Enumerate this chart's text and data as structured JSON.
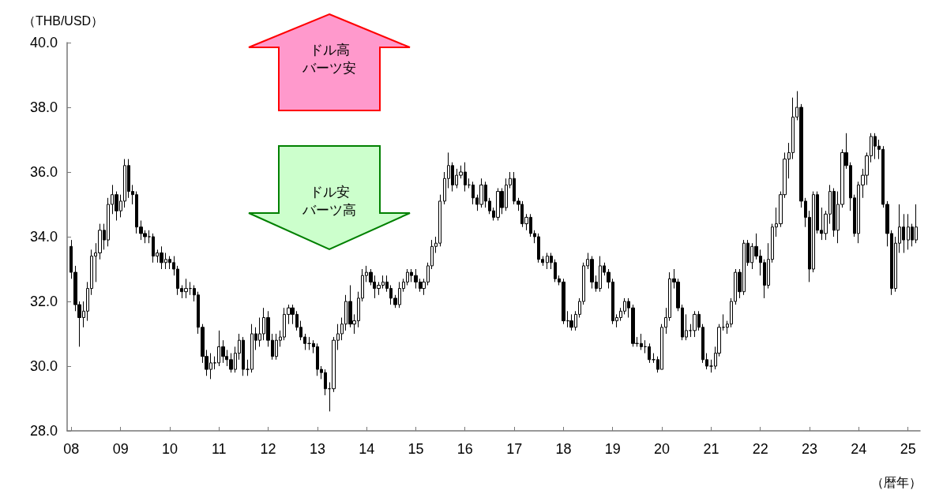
{
  "chart_data": {
    "type": "candlestick",
    "ylabel": "（THB/USD）",
    "xlabel": "（暦年）",
    "annotations": [
      "ドル高",
      "バーツ安",
      "ドル安",
      "バーツ高"
    ],
    "ylim": [
      28,
      40
    ],
    "yticks": [
      {
        "value": 28,
        "label": "28.0"
      },
      {
        "value": 30,
        "label": "30.0"
      },
      {
        "value": 32,
        "label": "32.0"
      },
      {
        "value": 34,
        "label": "34.0"
      },
      {
        "value": 36,
        "label": "36.0"
      },
      {
        "value": 38,
        "label": "38.0"
      },
      {
        "value": 40,
        "label": "40.0"
      }
    ],
    "xlim": [
      "2007-12-01",
      "2025-04"
    ],
    "xticks": [
      {
        "value": "2008-01",
        "label": "08"
      },
      {
        "value": "2009-01",
        "label": "09"
      },
      {
        "value": "2010-01",
        "label": "10"
      },
      {
        "value": "2011-01",
        "label": "11"
      },
      {
        "value": "2012-01",
        "label": "12"
      },
      {
        "value": "2013-01",
        "label": "13"
      },
      {
        "value": "2014-01",
        "label": "14"
      },
      {
        "value": "2015-01",
        "label": "15"
      },
      {
        "value": "2016-01",
        "label": "16"
      },
      {
        "value": "2017-01",
        "label": "17"
      },
      {
        "value": "2018-01",
        "label": "18"
      },
      {
        "value": "2019-01",
        "label": "19"
      },
      {
        "value": "2020-01",
        "label": "20"
      },
      {
        "value": "2021-01",
        "label": "21"
      },
      {
        "value": "2022-01",
        "label": "22"
      },
      {
        "value": "2023-01",
        "label": "23"
      },
      {
        "value": "2024-01",
        "label": "24"
      },
      {
        "value": "2025-01",
        "label": "25"
      }
    ],
    "grid": false,
    "x": [
      "2008-01",
      "2008-02",
      "2008-03",
      "2008-04",
      "2008-05",
      "2008-06",
      "2008-07",
      "2008-08",
      "2008-09",
      "2008-10",
      "2008-11",
      "2008-12",
      "2009-01",
      "2009-02",
      "2009-03",
      "2009-04",
      "2009-05",
      "2009-06",
      "2009-07",
      "2009-08",
      "2009-09",
      "2009-10",
      "2009-11",
      "2009-12",
      "2010-01",
      "2010-02",
      "2010-03",
      "2010-04",
      "2010-05",
      "2010-06",
      "2010-07",
      "2010-08",
      "2010-09",
      "2010-10",
      "2010-11",
      "2010-12",
      "2011-01",
      "2011-02",
      "2011-03",
      "2011-04",
      "2011-05",
      "2011-06",
      "2011-07",
      "2011-08",
      "2011-09",
      "2011-10",
      "2011-11",
      "2011-12",
      "2012-01",
      "2012-02",
      "2012-03",
      "2012-04",
      "2012-05",
      "2012-06",
      "2012-07",
      "2012-08",
      "2012-09",
      "2012-10",
      "2012-11",
      "2012-12",
      "2013-01",
      "2013-02",
      "2013-03",
      "2013-04",
      "2013-05",
      "2013-06",
      "2013-07",
      "2013-08",
      "2013-09",
      "2013-10",
      "2013-11",
      "2013-12",
      "2014-01",
      "2014-02",
      "2014-03",
      "2014-04",
      "2014-05",
      "2014-06",
      "2014-07",
      "2014-08",
      "2014-09",
      "2014-10",
      "2014-11",
      "2014-12",
      "2015-01",
      "2015-02",
      "2015-03",
      "2015-04",
      "2015-05",
      "2015-06",
      "2015-07",
      "2015-08",
      "2015-09",
      "2015-10",
      "2015-11",
      "2015-12",
      "2016-01",
      "2016-02",
      "2016-03",
      "2016-04",
      "2016-05",
      "2016-06",
      "2016-07",
      "2016-08",
      "2016-09",
      "2016-10",
      "2016-11",
      "2016-12",
      "2017-01",
      "2017-02",
      "2017-03",
      "2017-04",
      "2017-05",
      "2017-06",
      "2017-07",
      "2017-08",
      "2017-09",
      "2017-10",
      "2017-11",
      "2017-12",
      "2018-01",
      "2018-02",
      "2018-03",
      "2018-04",
      "2018-05",
      "2018-06",
      "2018-07",
      "2018-08",
      "2018-09",
      "2018-10",
      "2018-11",
      "2018-12",
      "2019-01",
      "2019-02",
      "2019-03",
      "2019-04",
      "2019-05",
      "2019-06",
      "2019-07",
      "2019-08",
      "2019-09",
      "2019-10",
      "2019-11",
      "2019-12",
      "2020-01",
      "2020-02",
      "2020-03",
      "2020-04",
      "2020-05",
      "2020-06",
      "2020-07",
      "2020-08",
      "2020-09",
      "2020-10",
      "2020-11",
      "2020-12",
      "2021-01",
      "2021-02",
      "2021-03",
      "2021-04",
      "2021-05",
      "2021-06",
      "2021-07",
      "2021-08",
      "2021-09",
      "2021-10",
      "2021-11",
      "2021-12",
      "2022-01",
      "2022-02",
      "2022-03",
      "2022-04",
      "2022-05",
      "2022-06",
      "2022-07",
      "2022-08",
      "2022-09",
      "2022-10",
      "2022-11",
      "2022-12",
      "2023-01",
      "2023-02",
      "2023-03",
      "2023-04",
      "2023-05",
      "2023-06",
      "2023-07",
      "2023-08",
      "2023-09",
      "2023-10",
      "2023-11",
      "2023-12",
      "2024-01",
      "2024-02",
      "2024-03",
      "2024-04",
      "2024-05",
      "2024-06",
      "2024-07",
      "2024-08",
      "2024-09",
      "2024-10",
      "2024-11",
      "2024-12",
      "2025-01",
      "2025-02",
      "2025-03"
    ],
    "ohlc": [
      [
        33.7,
        33.9,
        32.7,
        32.9
      ],
      [
        32.9,
        33.1,
        31.7,
        31.9
      ],
      [
        31.9,
        32.0,
        30.6,
        31.5
      ],
      [
        31.5,
        32.0,
        31.2,
        31.7
      ],
      [
        31.7,
        32.6,
        31.4,
        32.4
      ],
      [
        32.4,
        33.6,
        32.2,
        33.4
      ],
      [
        33.4,
        33.8,
        32.6,
        33.5
      ],
      [
        33.5,
        34.4,
        33.3,
        34.2
      ],
      [
        34.2,
        34.4,
        33.6,
        33.9
      ],
      [
        33.9,
        35.2,
        33.7,
        35.0
      ],
      [
        35.0,
        35.6,
        34.7,
        35.3
      ],
      [
        35.3,
        35.4,
        34.5,
        34.8
      ],
      [
        34.8,
        35.3,
        34.6,
        35.1
      ],
      [
        35.1,
        36.4,
        34.9,
        36.2
      ],
      [
        36.2,
        36.4,
        35.2,
        35.4
      ],
      [
        35.4,
        35.6,
        35.0,
        35.3
      ],
      [
        35.3,
        35.4,
        34.1,
        34.3
      ],
      [
        34.3,
        34.5,
        33.9,
        34.1
      ],
      [
        34.1,
        34.2,
        33.8,
        34.0
      ],
      [
        34.0,
        34.2,
        33.8,
        34.0
      ],
      [
        34.0,
        34.1,
        33.2,
        33.4
      ],
      [
        33.4,
        33.6,
        33.2,
        33.5
      ],
      [
        33.5,
        33.7,
        33.0,
        33.2
      ],
      [
        33.2,
        33.5,
        33.0,
        33.3
      ],
      [
        33.3,
        33.4,
        33.0,
        33.2
      ],
      [
        33.2,
        33.4,
        32.8,
        33.0
      ],
      [
        33.0,
        33.1,
        32.2,
        32.4
      ],
      [
        32.4,
        32.5,
        32.1,
        32.3
      ],
      [
        32.3,
        32.7,
        32.1,
        32.4
      ],
      [
        32.4,
        32.6,
        32.2,
        32.4
      ],
      [
        32.4,
        32.5,
        32.0,
        32.2
      ],
      [
        32.2,
        32.3,
        31.0,
        31.2
      ],
      [
        31.2,
        31.3,
        30.1,
        30.3
      ],
      [
        30.3,
        30.5,
        29.7,
        29.9
      ],
      [
        29.9,
        30.4,
        29.6,
        30.1
      ],
      [
        30.1,
        30.3,
        29.9,
        30.1
      ],
      [
        30.1,
        31.1,
        30.0,
        30.6
      ],
      [
        30.6,
        30.8,
        30.1,
        30.3
      ],
      [
        30.3,
        30.5,
        30.0,
        30.2
      ],
      [
        30.2,
        30.4,
        29.8,
        29.9
      ],
      [
        29.9,
        30.6,
        29.8,
        30.4
      ],
      [
        30.4,
        31.0,
        30.2,
        30.8
      ],
      [
        30.8,
        30.9,
        29.7,
        29.9
      ],
      [
        29.9,
        30.2,
        29.7,
        29.9
      ],
      [
        29.9,
        31.3,
        29.8,
        31.0
      ],
      [
        31.0,
        31.2,
        30.5,
        30.8
      ],
      [
        30.8,
        31.5,
        30.6,
        31.0
      ],
      [
        31.0,
        31.8,
        30.8,
        31.5
      ],
      [
        31.5,
        31.7,
        30.6,
        30.8
      ],
      [
        30.8,
        31.0,
        30.2,
        30.3
      ],
      [
        30.3,
        31.0,
        30.2,
        30.8
      ],
      [
        30.8,
        31.1,
        30.6,
        30.9
      ],
      [
        30.9,
        31.8,
        30.8,
        31.6
      ],
      [
        31.6,
        31.9,
        31.3,
        31.8
      ],
      [
        31.8,
        31.9,
        31.3,
        31.6
      ],
      [
        31.6,
        31.7,
        31.1,
        31.2
      ],
      [
        31.2,
        31.4,
        30.8,
        30.9
      ],
      [
        30.9,
        31.0,
        30.5,
        30.7
      ],
      [
        30.7,
        30.9,
        30.5,
        30.7
      ],
      [
        30.7,
        30.8,
        30.4,
        30.6
      ],
      [
        30.6,
        30.7,
        29.7,
        29.9
      ],
      [
        29.9,
        30.0,
        29.6,
        29.8
      ],
      [
        29.8,
        29.9,
        29.1,
        29.3
      ],
      [
        29.3,
        29.5,
        28.6,
        29.3
      ],
      [
        29.3,
        30.9,
        29.2,
        30.8
      ],
      [
        30.8,
        31.3,
        30.5,
        31.0
      ],
      [
        31.0,
        31.5,
        30.8,
        31.3
      ],
      [
        31.3,
        32.2,
        31.1,
        32.0
      ],
      [
        32.0,
        32.5,
        31.2,
        31.3
      ],
      [
        31.3,
        31.6,
        31.0,
        31.4
      ],
      [
        31.4,
        32.3,
        31.2,
        32.1
      ],
      [
        32.1,
        33.0,
        32.0,
        32.8
      ],
      [
        32.8,
        33.1,
        32.6,
        32.9
      ],
      [
        32.9,
        33.0,
        32.5,
        32.6
      ],
      [
        32.6,
        32.8,
        32.1,
        32.4
      ],
      [
        32.4,
        32.6,
        32.2,
        32.5
      ],
      [
        32.5,
        32.8,
        32.4,
        32.6
      ],
      [
        32.6,
        32.8,
        32.3,
        32.4
      ],
      [
        32.4,
        32.5,
        31.9,
        32.1
      ],
      [
        32.1,
        32.2,
        31.8,
        31.9
      ],
      [
        31.9,
        32.6,
        31.8,
        32.4
      ],
      [
        32.4,
        32.7,
        32.3,
        32.6
      ],
      [
        32.6,
        33.0,
        32.5,
        32.9
      ],
      [
        32.9,
        33.0,
        32.6,
        32.8
      ],
      [
        32.8,
        33.0,
        32.4,
        32.6
      ],
      [
        32.6,
        32.7,
        32.3,
        32.4
      ],
      [
        32.4,
        32.7,
        32.2,
        32.6
      ],
      [
        32.6,
        33.2,
        32.5,
        33.1
      ],
      [
        33.1,
        33.9,
        33.0,
        33.7
      ],
      [
        33.7,
        34.0,
        33.5,
        33.8
      ],
      [
        33.8,
        35.3,
        33.7,
        35.1
      ],
      [
        35.1,
        36.0,
        35.0,
        35.8
      ],
      [
        35.8,
        36.6,
        35.5,
        36.2
      ],
      [
        36.2,
        36.3,
        35.4,
        35.6
      ],
      [
        35.6,
        36.1,
        35.5,
        35.9
      ],
      [
        35.9,
        36.2,
        35.8,
        36.0
      ],
      [
        36.0,
        36.3,
        35.4,
        35.6
      ],
      [
        35.6,
        35.8,
        35.5,
        35.6
      ],
      [
        35.6,
        35.7,
        35.0,
        35.2
      ],
      [
        35.2,
        35.3,
        34.8,
        35.0
      ],
      [
        35.0,
        35.8,
        34.9,
        35.6
      ],
      [
        35.6,
        35.7,
        34.9,
        35.1
      ],
      [
        35.1,
        35.2,
        34.7,
        34.8
      ],
      [
        34.8,
        34.9,
        34.5,
        34.6
      ],
      [
        34.6,
        35.5,
        34.5,
        35.4
      ],
      [
        35.4,
        35.5,
        34.7,
        34.9
      ],
      [
        34.9,
        35.8,
        34.8,
        35.6
      ],
      [
        35.6,
        36.0,
        35.5,
        35.8
      ],
      [
        35.8,
        36.0,
        35.0,
        35.1
      ],
      [
        35.1,
        35.2,
        34.8,
        35.0
      ],
      [
        35.0,
        35.1,
        34.3,
        34.4
      ],
      [
        34.4,
        34.7,
        34.2,
        34.6
      ],
      [
        34.6,
        34.7,
        34.0,
        34.1
      ],
      [
        34.1,
        34.2,
        33.8,
        34.0
      ],
      [
        34.0,
        34.1,
        33.2,
        33.3
      ],
      [
        33.3,
        33.4,
        33.1,
        33.2
      ],
      [
        33.2,
        33.5,
        33.0,
        33.4
      ],
      [
        33.4,
        33.5,
        33.0,
        33.2
      ],
      [
        33.2,
        33.3,
        32.6,
        32.7
      ],
      [
        32.7,
        32.8,
        32.5,
        32.6
      ],
      [
        32.6,
        32.7,
        31.3,
        31.4
      ],
      [
        31.4,
        31.7,
        31.2,
        31.4
      ],
      [
        31.4,
        31.6,
        31.1,
        31.2
      ],
      [
        31.2,
        31.7,
        31.1,
        31.6
      ],
      [
        31.6,
        32.1,
        31.5,
        32.0
      ],
      [
        32.0,
        33.2,
        31.9,
        33.1
      ],
      [
        33.1,
        33.5,
        33.0,
        33.3
      ],
      [
        33.3,
        33.4,
        32.4,
        32.6
      ],
      [
        32.6,
        32.8,
        32.3,
        32.4
      ],
      [
        32.4,
        33.4,
        32.3,
        33.1
      ],
      [
        33.1,
        33.2,
        32.8,
        32.9
      ],
      [
        32.9,
        33.0,
        32.4,
        32.6
      ],
      [
        32.6,
        32.7,
        31.3,
        31.4
      ],
      [
        31.4,
        31.6,
        31.2,
        31.5
      ],
      [
        31.5,
        31.8,
        31.4,
        31.7
      ],
      [
        31.7,
        32.1,
        31.6,
        32.0
      ],
      [
        32.0,
        32.1,
        31.5,
        31.8
      ],
      [
        31.8,
        31.9,
        30.6,
        30.7
      ],
      [
        30.7,
        30.9,
        30.6,
        30.7
      ],
      [
        30.7,
        31.0,
        30.5,
        30.6
      ],
      [
        30.6,
        30.8,
        30.4,
        30.6
      ],
      [
        30.6,
        30.7,
        30.1,
        30.2
      ],
      [
        30.2,
        30.4,
        30.1,
        30.2
      ],
      [
        30.2,
        30.3,
        29.8,
        29.9
      ],
      [
        29.9,
        31.3,
        29.9,
        31.2
      ],
      [
        31.2,
        31.8,
        31.0,
        31.5
      ],
      [
        31.5,
        32.9,
        31.4,
        32.7
      ],
      [
        32.7,
        33.0,
        32.4,
        32.6
      ],
      [
        32.6,
        32.7,
        31.7,
        31.8
      ],
      [
        31.8,
        31.9,
        30.8,
        30.9
      ],
      [
        30.9,
        31.6,
        30.8,
        31.1
      ],
      [
        31.1,
        31.3,
        30.9,
        31.1
      ],
      [
        31.1,
        31.7,
        30.9,
        31.6
      ],
      [
        31.6,
        31.7,
        31.1,
        31.2
      ],
      [
        31.2,
        31.3,
        30.1,
        30.2
      ],
      [
        30.2,
        30.4,
        29.9,
        30.0
      ],
      [
        30.0,
        30.2,
        29.8,
        30.0
      ],
      [
        30.0,
        30.6,
        29.9,
        30.4
      ],
      [
        30.4,
        31.3,
        30.3,
        31.2
      ],
      [
        31.2,
        31.6,
        31.1,
        31.2
      ],
      [
        31.2,
        31.4,
        31.0,
        31.3
      ],
      [
        31.3,
        32.1,
        31.2,
        32.0
      ],
      [
        32.0,
        33.0,
        31.9,
        32.9
      ],
      [
        32.9,
        33.0,
        32.1,
        32.3
      ],
      [
        32.3,
        33.9,
        32.2,
        33.8
      ],
      [
        33.8,
        33.9,
        33.1,
        33.2
      ],
      [
        33.2,
        33.8,
        33.0,
        33.7
      ],
      [
        33.7,
        34.1,
        33.3,
        33.4
      ],
      [
        33.4,
        33.6,
        32.8,
        33.2
      ],
      [
        33.2,
        33.3,
        32.1,
        32.5
      ],
      [
        32.5,
        33.8,
        32.4,
        33.3
      ],
      [
        33.3,
        34.4,
        33.2,
        34.3
      ],
      [
        34.3,
        34.9,
        34.0,
        34.4
      ],
      [
        34.4,
        35.4,
        34.3,
        35.3
      ],
      [
        35.3,
        36.6,
        35.2,
        36.4
      ],
      [
        36.4,
        36.9,
        35.8,
        36.6
      ],
      [
        36.6,
        38.3,
        36.4,
        37.7
      ],
      [
        37.7,
        38.5,
        37.6,
        38.0
      ],
      [
        38.0,
        38.1,
        34.9,
        35.1
      ],
      [
        35.1,
        35.2,
        34.3,
        34.6
      ],
      [
        34.6,
        34.8,
        32.6,
        33.0
      ],
      [
        33.0,
        35.4,
        32.9,
        35.3
      ],
      [
        35.3,
        35.4,
        34.1,
        34.2
      ],
      [
        34.2,
        34.9,
        33.9,
        34.1
      ],
      [
        34.1,
        34.8,
        33.9,
        34.7
      ],
      [
        34.7,
        35.6,
        34.4,
        35.4
      ],
      [
        35.4,
        35.5,
        34.0,
        34.2
      ],
      [
        34.2,
        35.4,
        33.8,
        35.0
      ],
      [
        35.0,
        36.7,
        34.9,
        36.6
      ],
      [
        36.6,
        37.2,
        36.1,
        36.2
      ],
      [
        36.2,
        36.3,
        34.8,
        35.2
      ],
      [
        35.2,
        35.3,
        34.0,
        34.1
      ],
      [
        34.1,
        35.7,
        33.8,
        35.6
      ],
      [
        35.6,
        36.1,
        35.2,
        35.9
      ],
      [
        35.9,
        36.6,
        35.6,
        36.5
      ],
      [
        36.5,
        37.2,
        36.3,
        37.1
      ],
      [
        37.1,
        37.2,
        36.4,
        36.8
      ],
      [
        36.8,
        37.0,
        36.4,
        36.7
      ],
      [
        36.7,
        36.8,
        34.9,
        35.0
      ],
      [
        35.0,
        35.1,
        33.7,
        34.1
      ],
      [
        34.1,
        34.2,
        32.2,
        32.4
      ],
      [
        32.4,
        34.0,
        32.3,
        33.8
      ],
      [
        33.8,
        35.0,
        33.5,
        34.3
      ],
      [
        34.3,
        34.7,
        33.5,
        33.9
      ],
      [
        33.9,
        34.7,
        33.6,
        34.3
      ],
      [
        34.3,
        34.4,
        33.7,
        33.9
      ],
      [
        33.9,
        35.0,
        33.8,
        34.3
      ]
    ]
  }
}
